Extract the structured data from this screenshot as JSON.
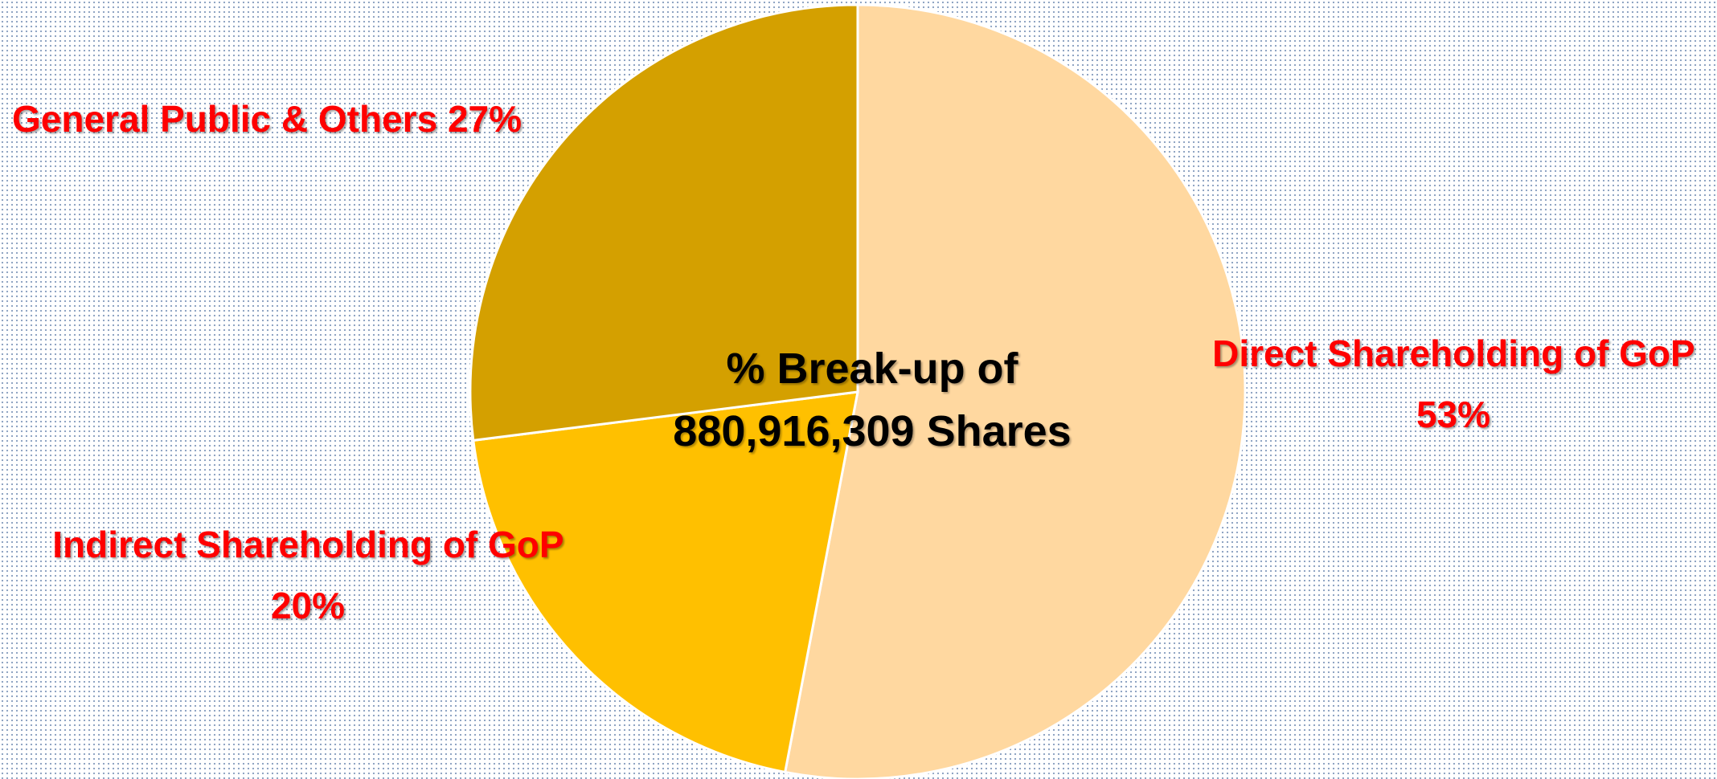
{
  "chart_data": {
    "type": "pie",
    "title": "% Break-up of 880,916,309 Shares",
    "categories": [
      "Direct Shareholding of GoP",
      "Indirect Shareholding of GoP",
      "General Public & Others"
    ],
    "values": [
      53,
      20,
      27
    ],
    "value_labels": [
      "53%",
      "20%",
      "27%"
    ],
    "colors": [
      "#FFD8A0",
      "#FFC000",
      "#D4A000"
    ]
  }
}
